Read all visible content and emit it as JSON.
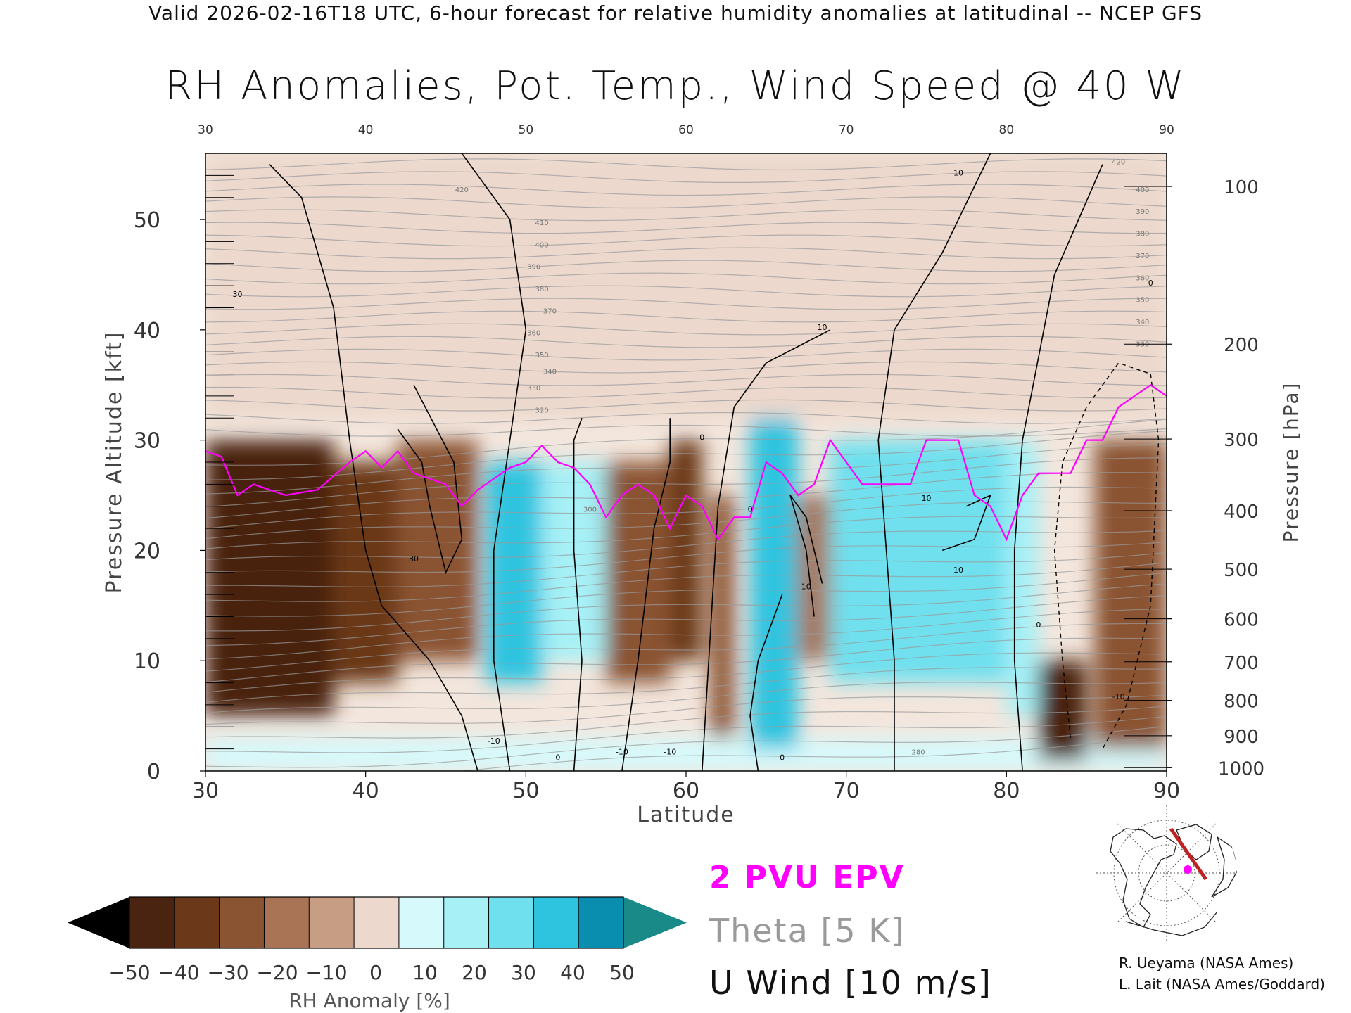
{
  "header": "Valid 2026-02-16T18 UTC, 6-hour forecast for relative humidity anomalies at latitudinal -- NCEP GFS",
  "title": "RH Anomalies, Pot. Temp., Wind Speed @ 40 W",
  "legend": {
    "epv": "2 PVU EPV",
    "theta": "Theta [5 K]",
    "wind": "U Wind [10 m/s]"
  },
  "credits": {
    "line1": "R. Ueyama (NASA Ames)",
    "line2": "L. Lait (NASA Ames/Goddard)"
  },
  "colorbar": {
    "label": "RH Anomaly [%]",
    "ticks": [
      "-50",
      "-40",
      "-30",
      "-20",
      "-10",
      "0",
      "10",
      "20",
      "30",
      "40",
      "50"
    ],
    "colors": [
      "#4a2410",
      "#6b3819",
      "#8a5331",
      "#a97456",
      "#c79d84",
      "#ecd8cc",
      "#d6f9fb",
      "#a6f0f6",
      "#6fe0ee",
      "#2ec4e0",
      "#0a8eb0"
    ],
    "under_color": "#000000",
    "over_color": "#1a8a88"
  },
  "colors": {
    "epv": "#ff00ff",
    "theta": "#9a9a9a",
    "wind": "#000000",
    "map_line": "#c02020"
  },
  "chart_data": {
    "type": "heatmap",
    "title": "RH Anomalies, Pot. Temp., Wind Speed @ 40 W",
    "xlabel": "Latitude",
    "ylabel_left": "Pressure Altitude [kft]",
    "ylabel_right": "Pressure [hPa]",
    "xlim": [
      30,
      90
    ],
    "ylim": [
      0,
      56
    ],
    "x_ticks": [
      30,
      40,
      50,
      60,
      70,
      80,
      90
    ],
    "y_ticks": [
      0,
      10,
      20,
      30,
      40,
      50
    ],
    "pressure_ticks": [
      {
        "hPa": 100,
        "kft": 53
      },
      {
        "hPa": 200,
        "kft": 38.7
      },
      {
        "hPa": 300,
        "kft": 30.1
      },
      {
        "hPa": 400,
        "kft": 23.6
      },
      {
        "hPa": 500,
        "kft": 18.3
      },
      {
        "hPa": 600,
        "kft": 13.8
      },
      {
        "hPa": 700,
        "kft": 9.9
      },
      {
        "hPa": 800,
        "kft": 6.4
      },
      {
        "hPa": 900,
        "kft": 3.2
      },
      {
        "hPa": 1000,
        "kft": 0.3
      }
    ],
    "rh_anomaly_regions": [
      {
        "lat": [
          30,
          38
        ],
        "kft": [
          5,
          30
        ],
        "value": -45
      },
      {
        "lat": [
          38,
          42
        ],
        "kft": [
          8,
          28
        ],
        "value": -35
      },
      {
        "lat": [
          42,
          47
        ],
        "kft": [
          10,
          30
        ],
        "value": -25
      },
      {
        "lat": [
          47.5,
          51
        ],
        "kft": [
          8,
          28
        ],
        "value": 40
      },
      {
        "lat": [
          51,
          55
        ],
        "kft": [
          10,
          28
        ],
        "value": 25
      },
      {
        "lat": [
          55,
          59
        ],
        "kft": [
          8,
          28
        ],
        "value": -30
      },
      {
        "lat": [
          59,
          61
        ],
        "kft": [
          10,
          30
        ],
        "value": -35
      },
      {
        "lat": [
          61.5,
          63
        ],
        "kft": [
          3,
          25
        ],
        "value": -25
      },
      {
        "lat": [
          64,
          67
        ],
        "kft": [
          2,
          32
        ],
        "value": 40
      },
      {
        "lat": [
          67,
          69
        ],
        "kft": [
          10,
          25
        ],
        "value": -20
      },
      {
        "lat": [
          69,
          80
        ],
        "kft": [
          8,
          30
        ],
        "value": 35
      },
      {
        "lat": [
          80,
          82
        ],
        "kft": [
          5,
          30
        ],
        "value": 20
      },
      {
        "lat": [
          82,
          85
        ],
        "kft": [
          1,
          10
        ],
        "value": -45
      },
      {
        "lat": [
          85.5,
          90
        ],
        "kft": [
          2,
          30
        ],
        "value": -25
      },
      {
        "lat": [
          30,
          90
        ],
        "kft": [
          0,
          3
        ],
        "value": 10
      },
      {
        "lat": [
          30,
          90
        ],
        "kft": [
          32,
          56
        ],
        "value": 0
      }
    ],
    "epv_2pvu_kft": [
      [
        30,
        29
      ],
      [
        31,
        28.5
      ],
      [
        32,
        25
      ],
      [
        33,
        26
      ],
      [
        35,
        25
      ],
      [
        37,
        25.5
      ],
      [
        39,
        28
      ],
      [
        40,
        29
      ],
      [
        41,
        27.5
      ],
      [
        42,
        29
      ],
      [
        43,
        27
      ],
      [
        44,
        26.5
      ],
      [
        45,
        26
      ],
      [
        46,
        24
      ],
      [
        47,
        25.5
      ],
      [
        48,
        26.5
      ],
      [
        49,
        27.5
      ],
      [
        50,
        28
      ],
      [
        51,
        29.5
      ],
      [
        52,
        28
      ],
      [
        53,
        27.5
      ],
      [
        54,
        26
      ],
      [
        55,
        23
      ],
      [
        56,
        25
      ],
      [
        57,
        26
      ],
      [
        58,
        25
      ],
      [
        59,
        22
      ],
      [
        60,
        25
      ],
      [
        61,
        24
      ],
      [
        62,
        21
      ],
      [
        63,
        23
      ],
      [
        64,
        23
      ],
      [
        65,
        28
      ],
      [
        66,
        27
      ],
      [
        67,
        25
      ],
      [
        68,
        26
      ],
      [
        69,
        30
      ],
      [
        70,
        28
      ],
      [
        71,
        26
      ],
      [
        72,
        26
      ],
      [
        74,
        26
      ],
      [
        75,
        30
      ],
      [
        77,
        30
      ],
      [
        78,
        25
      ],
      [
        79,
        24
      ],
      [
        80,
        21
      ],
      [
        81,
        25
      ],
      [
        82,
        27
      ],
      [
        84,
        27
      ],
      [
        85,
        30
      ],
      [
        86,
        30
      ],
      [
        87,
        33
      ],
      [
        88,
        34
      ],
      [
        89,
        35
      ],
      [
        90,
        34
      ]
    ],
    "wind_contour_labels": [
      {
        "lat": 32,
        "kft": 43,
        "text": "30"
      },
      {
        "lat": 43,
        "kft": 19,
        "text": "30"
      },
      {
        "lat": 48,
        "kft": 2.5,
        "text": "-10"
      },
      {
        "lat": 52,
        "kft": 1,
        "text": "0"
      },
      {
        "lat": 56,
        "kft": 1.5,
        "text": "-10"
      },
      {
        "lat": 59,
        "kft": 1.5,
        "text": "-10"
      },
      {
        "lat": 61,
        "kft": 30,
        "text": "0"
      },
      {
        "lat": 64,
        "kft": 23.5,
        "text": "0"
      },
      {
        "lat": 66,
        "kft": 1,
        "text": "0"
      },
      {
        "lat": 67.5,
        "kft": 16.5,
        "text": "10"
      },
      {
        "lat": 68.5,
        "kft": 40,
        "text": "10"
      },
      {
        "lat": 75,
        "kft": 24.5,
        "text": "10"
      },
      {
        "lat": 77,
        "kft": 18,
        "text": "10"
      },
      {
        "lat": 77,
        "kft": 54,
        "text": "10"
      },
      {
        "lat": 82,
        "kft": 13,
        "text": "0"
      },
      {
        "lat": 87,
        "kft": 6.5,
        "text": "-10"
      },
      {
        "lat": 89,
        "kft": 44,
        "text": "0"
      }
    ],
    "theta_labels": [
      {
        "lat": 46,
        "kft": 52.5,
        "text": "420"
      },
      {
        "lat": 51,
        "kft": 49.5,
        "text": "410"
      },
      {
        "lat": 51,
        "kft": 47.5,
        "text": "400"
      },
      {
        "lat": 50.5,
        "kft": 45.5,
        "text": "390"
      },
      {
        "lat": 51,
        "kft": 43.5,
        "text": "380"
      },
      {
        "lat": 51.5,
        "kft": 41.5,
        "text": "370"
      },
      {
        "lat": 50.5,
        "kft": 39.5,
        "text": "360"
      },
      {
        "lat": 51,
        "kft": 37.5,
        "text": "350"
      },
      {
        "lat": 51.5,
        "kft": 36,
        "text": "340"
      },
      {
        "lat": 50.5,
        "kft": 34.5,
        "text": "330"
      },
      {
        "lat": 51,
        "kft": 32.5,
        "text": "320"
      },
      {
        "lat": 54,
        "kft": 23.5,
        "text": "300"
      },
      {
        "lat": 87,
        "kft": 55,
        "text": "420"
      },
      {
        "lat": 88.5,
        "kft": 52.5,
        "text": "400"
      },
      {
        "lat": 88.5,
        "kft": 50.5,
        "text": "390"
      },
      {
        "lat": 88.5,
        "kft": 48.5,
        "text": "380"
      },
      {
        "lat": 88.5,
        "kft": 46.5,
        "text": "370"
      },
      {
        "lat": 88.5,
        "kft": 44.5,
        "text": "360"
      },
      {
        "lat": 88.5,
        "kft": 42.5,
        "text": "350"
      },
      {
        "lat": 88.5,
        "kft": 40.5,
        "text": "340"
      },
      {
        "lat": 88.5,
        "kft": 38.5,
        "text": "330"
      },
      {
        "lat": 74.5,
        "kft": 1.5,
        "text": "280"
      }
    ]
  }
}
